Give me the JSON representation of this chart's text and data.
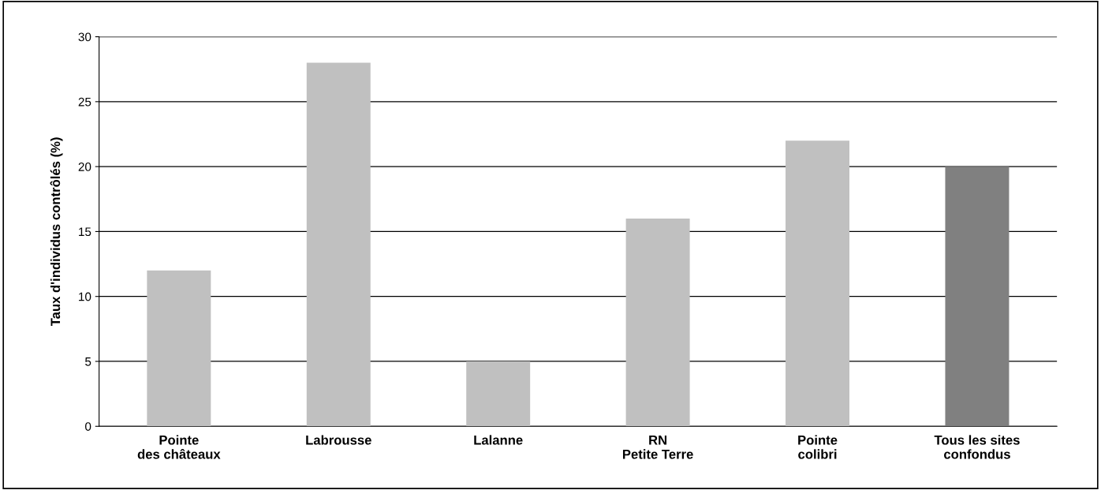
{
  "chart_data": {
    "type": "bar",
    "ylabel": "Taux d'individus contrôlés (%)",
    "categories": [
      "Pointe\ndes châteaux",
      "Labrousse",
      "Lalanne",
      "RN\nPetite Terre",
      "Pointe\ncolibri",
      "Tous les sites\nconfondus"
    ],
    "values": [
      12,
      28,
      5,
      16,
      22,
      20
    ],
    "colors": [
      "#c0c0c0",
      "#c0c0c0",
      "#c0c0c0",
      "#c0c0c0",
      "#c0c0c0",
      "#808080"
    ],
    "ylim": [
      0,
      30
    ],
    "yticks": [
      0,
      5,
      10,
      15,
      20,
      25,
      30
    ],
    "grid": "y"
  }
}
